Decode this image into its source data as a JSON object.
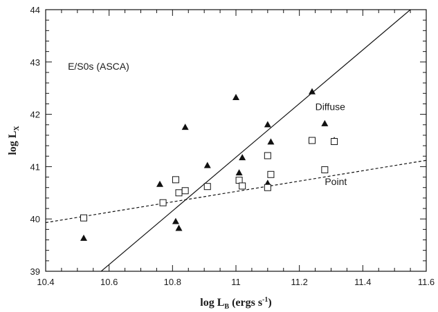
{
  "chart_data": {
    "type": "scatter",
    "title": "",
    "xlabel": "log L_B (ergs s^-1)",
    "ylabel": "log L_X",
    "xlim": [
      10.4,
      11.6
    ],
    "ylim": [
      39,
      44
    ],
    "xticks": [
      10.4,
      10.6,
      10.8,
      11,
      11.2,
      11.4,
      11.6
    ],
    "xtick_labels": [
      "10.4",
      "10.6",
      "10.8",
      "11",
      "11.2",
      "11.4",
      "11.6"
    ],
    "yticks": [
      39,
      40,
      41,
      42,
      43,
      44
    ],
    "ytick_labels": [
      "39",
      "40",
      "41",
      "42",
      "43",
      "44"
    ],
    "grid": false,
    "annotations": [
      {
        "text": "E/S0s (ASCA)",
        "x": 10.47,
        "y": 42.85
      },
      {
        "text": "Diffuse",
        "x": 11.25,
        "y": 42.08
      },
      {
        "text": "Point",
        "x": 11.28,
        "y": 40.65
      }
    ],
    "series": [
      {
        "marker": "filled-triangle",
        "color": "#111111",
        "points": [
          [
            10.52,
            39.63
          ],
          [
            10.76,
            40.66
          ],
          [
            10.81,
            39.95
          ],
          [
            10.82,
            39.82
          ],
          [
            10.84,
            41.75
          ],
          [
            10.91,
            41.02
          ],
          [
            11.0,
            42.32
          ],
          [
            11.01,
            40.88
          ],
          [
            11.02,
            41.17
          ],
          [
            11.1,
            41.8
          ],
          [
            11.1,
            40.68
          ],
          [
            11.11,
            41.47
          ],
          [
            11.24,
            42.43
          ],
          [
            11.28,
            41.82
          ],
          [
            11.31,
            41.5
          ]
        ]
      },
      {
        "marker": "open-square",
        "color": "#111111",
        "points": [
          [
            10.52,
            40.02
          ],
          [
            10.77,
            40.31
          ],
          [
            10.81,
            40.75
          ],
          [
            10.82,
            40.5
          ],
          [
            10.84,
            40.54
          ],
          [
            10.91,
            40.62
          ],
          [
            11.01,
            40.74
          ],
          [
            11.02,
            40.63
          ],
          [
            11.1,
            41.21
          ],
          [
            11.1,
            40.6
          ],
          [
            11.11,
            40.85
          ],
          [
            11.24,
            41.5
          ],
          [
            11.28,
            40.94
          ],
          [
            11.31,
            41.48
          ]
        ]
      }
    ],
    "lines": [
      {
        "label": "Diffuse",
        "style": "solid",
        "x": [
          10.575,
          11.55
        ],
        "y": [
          39,
          44
        ]
      },
      {
        "label": "Point",
        "style": "dashed",
        "x": [
          10.4,
          11.6
        ],
        "y": [
          39.93,
          41.12
        ]
      }
    ]
  }
}
